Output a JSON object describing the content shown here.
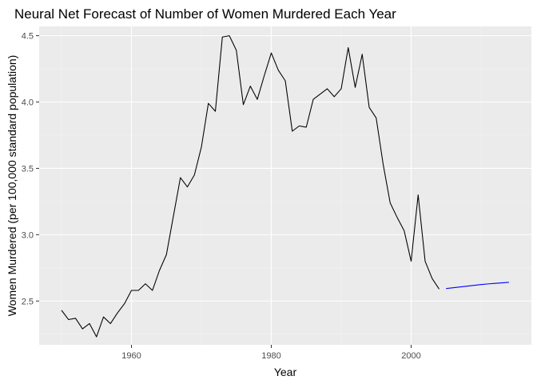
{
  "chart_data": {
    "type": "line",
    "title": "Neural Net Forecast of Number of Women Murdered Each Year",
    "xlabel": "Year",
    "ylabel": "Women Murdered (per 100,000 standard population)",
    "xlim": [
      1946.8,
      2017.2
    ],
    "ylim": [
      2.17,
      4.57
    ],
    "x_ticks": [
      1960,
      1980,
      2000
    ],
    "x_minor_ticks": [
      1950,
      1970,
      1990,
      2010
    ],
    "y_ticks": [
      2.5,
      3.0,
      3.5,
      4.0,
      4.5
    ],
    "y_minor_ticks": [
      2.25,
      2.75,
      3.25,
      3.75,
      4.25
    ],
    "x_tick_labels": [
      "1960",
      "1980",
      "2000"
    ],
    "y_tick_labels": [
      "2.5",
      "3.0",
      "3.5",
      "4.0",
      "4.5"
    ],
    "grid": true,
    "background": "#ebebeb",
    "series": [
      {
        "color": "#000000",
        "x": [
          1950,
          1951,
          1952,
          1953,
          1954,
          1955,
          1956,
          1957,
          1958,
          1959,
          1960,
          1961,
          1962,
          1963,
          1964,
          1965,
          1966,
          1967,
          1968,
          1969,
          1970,
          1971,
          1972,
          1973,
          1974,
          1975,
          1976,
          1977,
          1978,
          1979,
          1980,
          1981,
          1982,
          1983,
          1984,
          1985,
          1986,
          1987,
          1988,
          1989,
          1990,
          1991,
          1992,
          1993,
          1994,
          1995,
          1996,
          1997,
          1998,
          1999,
          2000,
          2001,
          2002,
          2003,
          2004
        ],
        "y": [
          2.43,
          2.36,
          2.37,
          2.29,
          2.33,
          2.23,
          2.38,
          2.33,
          2.41,
          2.48,
          2.58,
          2.58,
          2.63,
          2.58,
          2.73,
          2.85,
          3.14,
          3.43,
          3.36,
          3.45,
          3.66,
          3.99,
          3.93,
          4.49,
          4.5,
          4.39,
          3.98,
          4.12,
          4.02,
          4.2,
          4.37,
          4.24,
          4.16,
          3.78,
          3.82,
          3.81,
          4.02,
          4.06,
          4.1,
          4.04,
          4.1,
          4.41,
          4.11,
          4.36,
          3.96,
          3.88,
          3.53,
          3.24,
          3.13,
          3.03,
          2.8,
          3.3,
          2.8,
          2.67,
          2.59
        ]
      },
      {
        "color": "#0000ff",
        "x": [
          2005,
          2006,
          2007,
          2008,
          2009,
          2010,
          2011,
          2012,
          2013,
          2014
        ],
        "y": [
          2.594,
          2.6,
          2.606,
          2.612,
          2.618,
          2.624,
          2.629,
          2.633,
          2.637,
          2.641
        ]
      }
    ]
  }
}
